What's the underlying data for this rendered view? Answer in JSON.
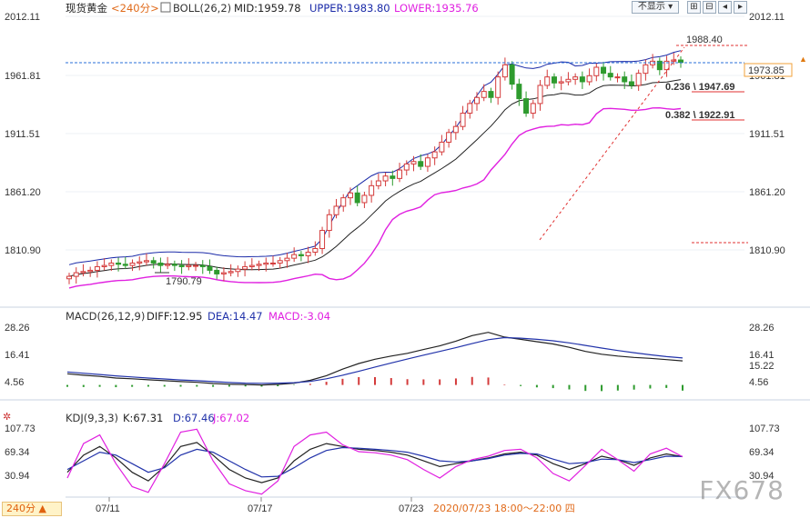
{
  "header": {
    "symbol": "现货黄金",
    "period_tag": "<240分>",
    "boll": "BOLL(26,2)",
    "mid": "MID:1959.78",
    "upper": "UPPER:1983.80",
    "lower": "LOWER:1935.76"
  },
  "controls": {
    "hide_label": "不显示",
    "period_button": "240分 ▲",
    "icons": [
      "zoom-in-icon",
      "zoom-out-icon",
      "pan-left-icon",
      "pan-right-icon"
    ]
  },
  "price_axis": {
    "ticks": [
      "2012.11",
      "1961.81",
      "1911.51",
      "1861.20",
      "1810.90"
    ]
  },
  "price_labels": {
    "current": "1973.85",
    "high": "1988.40",
    "low": "1790.79",
    "fib1": "0.236 \\ 1947.69",
    "fib2": "0.382 \\ 1922.91"
  },
  "macd": {
    "title": "MACD(26,12,9)",
    "diff": "DIFF:12.95",
    "dea": "DEA:14.47",
    "macd": "MACD:-3.04",
    "ticks_left": [
      "28.26",
      "16.41",
      "4.56"
    ],
    "ticks_right": [
      "28.26",
      "16.41",
      "4.56"
    ],
    "current": "15.22"
  },
  "kdj": {
    "title": "KDJ(9,3,3)",
    "k": "K:67.31",
    "d": "D:67.46",
    "j": "J:67.02",
    "ticks_left": [
      "107.73",
      "69.34",
      "30.94"
    ],
    "ticks_right": [
      "107.73",
      "69.34",
      "30.94"
    ]
  },
  "time_axis": {
    "labels": [
      "07/11",
      "07/17",
      "07/23"
    ],
    "cursor": "2020/07/23 18:00～22:00 四"
  },
  "watermark": "FX678",
  "colors": {
    "up": "#d43b3b",
    "down": "#2e9b2e",
    "upper": "#1a2aa8",
    "mid": "#222222",
    "lower": "#e020e0",
    "dea": "#2233aa",
    "fib": "#e03030",
    "cursor": "#2a6fd8"
  },
  "chart_data": [
    {
      "type": "candlestick",
      "title": "现货黄金 240分",
      "ylim": [
        1770,
        2012.11
      ],
      "x": [
        "07/11",
        "07/17",
        "07/23"
      ],
      "close_path": [
        1797,
        1800,
        1801,
        1802,
        1805,
        1806,
        1808,
        1807,
        1806,
        1808,
        1809,
        1810,
        1808,
        1806,
        1807,
        1806,
        1805,
        1806,
        1806,
        1805,
        1802,
        1799,
        1800,
        1801,
        1803,
        1805,
        1806,
        1807,
        1808,
        1808,
        1810,
        1812,
        1815,
        1814,
        1817,
        1820,
        1835,
        1848,
        1855,
        1862,
        1866,
        1858,
        1864,
        1872,
        1876,
        1880,
        1878,
        1885,
        1890,
        1892,
        1888,
        1895,
        1900,
        1908,
        1916,
        1921,
        1932,
        1940,
        1945,
        1950,
        1945,
        1962,
        1972,
        1956,
        1944,
        1932,
        1940,
        1955,
        1962,
        1957,
        1958,
        1960,
        1962,
        1958,
        1963,
        1970,
        1965,
        1962,
        1962,
        1958,
        1955,
        1965,
        1972,
        1975,
        1968,
        1975,
        1976,
        1974
      ],
      "boll_upper_end": 1983.8,
      "boll_mid_end": 1959.78,
      "boll_lower_end": 1935.76,
      "high": 1988.4,
      "low": 1790.79,
      "current": 1973.85,
      "fib_levels": [
        {
          "ratio": 0.236,
          "price": 1947.69
        },
        {
          "ratio": 0.382,
          "price": 1922.91
        }
      ]
    },
    {
      "type": "line",
      "title": "MACD(26,12,9)",
      "ylim": [
        -8,
        32
      ],
      "series": [
        {
          "name": "DIFF",
          "values": [
            6,
            5.2,
            4.6,
            3.7,
            3.3,
            2.8,
            2.3,
            1.8,
            1.4,
            0.8,
            0.4,
            0.2,
            0,
            0.3,
            1,
            2.5,
            5,
            8.5,
            11.5,
            13.8,
            15.5,
            17,
            19,
            21,
            23.5,
            26.5,
            28.26,
            25.7,
            24.5,
            23.2,
            22,
            20.2,
            18,
            16.5,
            15.5,
            14.8,
            14.3,
            13.6,
            12.95
          ]
        },
        {
          "name": "DEA",
          "values": [
            7,
            6.3,
            5.6,
            4.9,
            4.3,
            3.7,
            3.2,
            2.7,
            2.3,
            1.8,
            1.3,
            1,
            0.9,
            1,
            1.2,
            1.9,
            3.3,
            5.2,
            7.3,
            9.6,
            11.8,
            13.9,
            16,
            18,
            20,
            22.2,
            24.3,
            25.4,
            25.1,
            24.5,
            23.7,
            22.6,
            21.2,
            19.8,
            18.5,
            17.3,
            16.2,
            15.2,
            14.47
          ]
        }
      ],
      "histogram": [
        -1,
        -1.1,
        -1,
        -1.2,
        -1,
        -0.9,
        -0.9,
        -0.9,
        -0.9,
        -1,
        -0.9,
        -0.8,
        -0.9,
        -0.7,
        -0.2,
        0.6,
        1.7,
        3.3,
        4.2,
        4.2,
        3.7,
        3.1,
        3,
        3,
        3.5,
        4.3,
        4,
        0.3,
        -0.6,
        -1.3,
        -1.7,
        -2.4,
        -3.2,
        -3.3,
        -3,
        -2.5,
        -1.9,
        -1.6,
        -3.04
      ]
    },
    {
      "type": "line",
      "title": "KDJ(9,3,3)",
      "ylim": [
        0,
        125
      ],
      "series": [
        {
          "name": "K",
          "values": [
            40,
            70,
            85,
            65,
            40,
            25,
            50,
            85,
            92,
            70,
            45,
            30,
            22,
            30,
            60,
            80,
            90,
            85,
            80,
            78,
            75,
            70,
            60,
            50,
            55,
            60,
            65,
            72,
            75,
            70,
            55,
            45,
            55,
            68,
            62,
            52,
            65,
            72,
            67.31
          ]
        },
        {
          "name": "D",
          "values": [
            45,
            60,
            75,
            70,
            55,
            40,
            48,
            70,
            80,
            75,
            60,
            45,
            32,
            33,
            48,
            65,
            78,
            83,
            82,
            80,
            78,
            75,
            68,
            60,
            58,
            60,
            64,
            70,
            73,
            72,
            63,
            55,
            57,
            63,
            62,
            57,
            62,
            68,
            67.46
          ]
        },
        {
          "name": "J",
          "values": [
            30,
            90,
            105,
            55,
            15,
            5,
            55,
            110,
            115,
            60,
            20,
            8,
            2,
            25,
            85,
            105,
            110,
            88,
            76,
            74,
            70,
            62,
            45,
            30,
            50,
            62,
            68,
            78,
            80,
            65,
            38,
            25,
            52,
            80,
            62,
            42,
            72,
            82,
            67.02
          ]
        }
      ]
    }
  ]
}
